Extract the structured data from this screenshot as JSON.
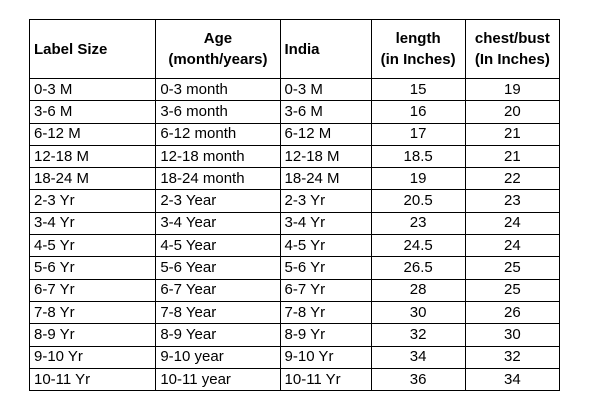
{
  "table": {
    "headers": [
      {
        "line1": "Label Size",
        "line2": ""
      },
      {
        "line1": "Age",
        "line2": "(month/years)"
      },
      {
        "line1": "India",
        "line2": ""
      },
      {
        "line1": "length",
        "line2": "(in Inches)"
      },
      {
        "line1": "chest/bust",
        "line2": "(In Inches)"
      }
    ],
    "rows": [
      [
        "0-3 M",
        "0-3 month",
        "0-3 M",
        "15",
        "19"
      ],
      [
        "3-6 M",
        "3-6 month",
        "3-6 M",
        "16",
        "20"
      ],
      [
        "6-12 M",
        "6-12 month",
        "6-12 M",
        "17",
        "21"
      ],
      [
        "12-18 M",
        "12-18 month",
        "12-18 M",
        "18.5",
        "21"
      ],
      [
        "18-24 M",
        "18-24 month",
        "18-24 M",
        "19",
        "22"
      ],
      [
        "2-3 Yr",
        "2-3 Year",
        "2-3 Yr",
        "20.5",
        "23"
      ],
      [
        "3-4 Yr",
        "3-4 Year",
        "3-4 Yr",
        "23",
        "24"
      ],
      [
        "4-5 Yr",
        "4-5 Year",
        "4-5 Yr",
        "24.5",
        "24"
      ],
      [
        "5-6 Yr",
        "5-6 Year",
        "5-6 Yr",
        "26.5",
        "25"
      ],
      [
        "6-7 Yr",
        "6-7 Year",
        "6-7 Yr",
        "28",
        "25"
      ],
      [
        "7-8 Yr",
        "7-8 Year",
        "7-8 Yr",
        "30",
        "26"
      ],
      [
        "8-9 Yr",
        "8-9 Year",
        "8-9 Yr",
        "32",
        "30"
      ],
      [
        "9-10 Yr",
        "9-10 year",
        "9-10 Yr",
        "34",
        "32"
      ],
      [
        "10-11 Yr",
        "10-11 year",
        "10-11 Yr",
        "36",
        "34"
      ]
    ]
  }
}
